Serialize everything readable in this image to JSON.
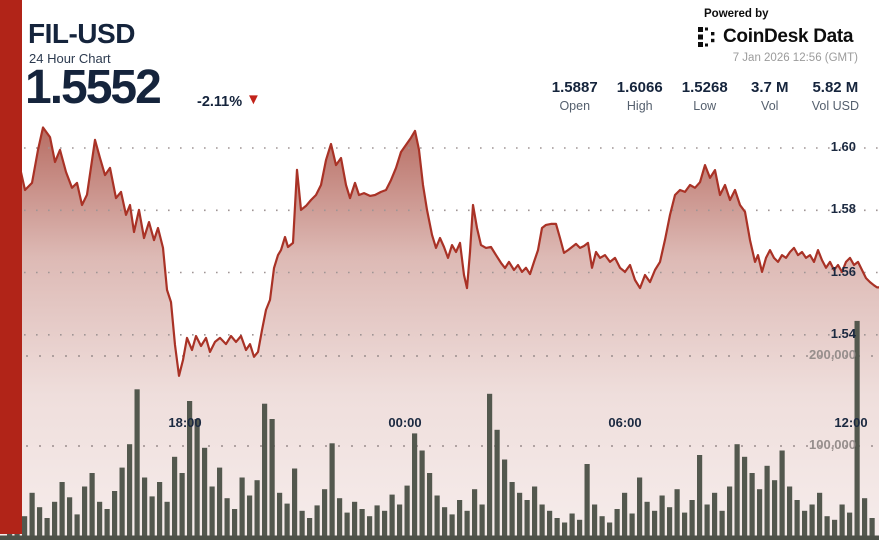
{
  "header": {
    "symbol": "FIL-USD",
    "subtitle": "24 Hour Chart",
    "price": "1.5552",
    "change": "-2.11%",
    "down_arrow": "▼",
    "powered_by": "Powered by",
    "brand": "CoinDesk Data",
    "timestamp": "7 Jan 2026 12:56 (GMT)",
    "stats": [
      {
        "value": "1.5887",
        "label": "Open"
      },
      {
        "value": "1.6066",
        "label": "High"
      },
      {
        "value": "1.5268",
        "label": "Low"
      },
      {
        "value": "3.7 M",
        "label": "Vol"
      },
      {
        "value": "5.82 M",
        "label": "Vol USD"
      }
    ]
  },
  "colors": {
    "accent_red": "#b12418",
    "line_red": "#a93226",
    "fill_red": "#9b3325",
    "navy_text": "#15243c",
    "volume_bar": "#53584e",
    "gray_label": "#968e8c",
    "triangle_red": "#c2231a"
  },
  "chart_data": {
    "type": "area",
    "title": "FIL-USD 24 Hour Chart",
    "open": 1.5887,
    "high": 1.6066,
    "low": 1.5268,
    "last": 1.5552,
    "volume": "3.7 M",
    "volume_usd": "5.82 M",
    "y_axis": {
      "side": "right",
      "ticks": [
        "1.60",
        "1.58",
        "1.56",
        "1.54"
      ],
      "tick_values": [
        1.6,
        1.58,
        1.56,
        1.54
      ],
      "ylim": [
        1.515,
        1.615
      ],
      "grid": "dotted"
    },
    "vol_axis": {
      "labels": [
        "200,000",
        "100,000"
      ],
      "values": [
        200000,
        100000
      ]
    },
    "x_axis": {
      "ticks": [
        "18:00",
        "00:00",
        "06:00",
        "12:00"
      ]
    },
    "price_line": {
      "series_name": "FIL-USD price",
      "points": [
        [
          0,
          1.595
        ],
        [
          8,
          1.5952
        ],
        [
          14,
          1.5978
        ],
        [
          20,
          1.5936
        ],
        [
          25,
          1.5865
        ],
        [
          32,
          1.5888
        ],
        [
          38,
          1.5994
        ],
        [
          43,
          1.6066
        ],
        [
          50,
          1.6035
        ],
        [
          55,
          1.5955
        ],
        [
          60,
          1.5994
        ],
        [
          66,
          1.5923
        ],
        [
          72,
          1.5872
        ],
        [
          77,
          1.5888
        ],
        [
          82,
          1.5817
        ],
        [
          87,
          1.585
        ],
        [
          95,
          1.6026
        ],
        [
          100,
          1.5968
        ],
        [
          105,
          1.5913
        ],
        [
          110,
          1.5936
        ],
        [
          116,
          1.5839
        ],
        [
          121,
          1.5859
        ],
        [
          126,
          1.5785
        ],
        [
          130,
          1.5817
        ],
        [
          134,
          1.573
        ],
        [
          139,
          1.5801
        ],
        [
          144,
          1.5711
        ],
        [
          149,
          1.5762
        ],
        [
          154,
          1.5704
        ],
        [
          158,
          1.5743
        ],
        [
          163,
          1.5679
        ],
        [
          167,
          1.5544
        ],
        [
          171,
          1.5505
        ],
        [
          175,
          1.5367
        ],
        [
          179,
          1.5268
        ],
        [
          183,
          1.5319
        ],
        [
          187,
          1.539
        ],
        [
          192,
          1.5351
        ],
        [
          196,
          1.5396
        ],
        [
          201,
          1.5364
        ],
        [
          206,
          1.539
        ],
        [
          210,
          1.5345
        ],
        [
          215,
          1.5377
        ],
        [
          220,
          1.539
        ],
        [
          226,
          1.537
        ],
        [
          231,
          1.5396
        ],
        [
          236,
          1.5377
        ],
        [
          241,
          1.5396
        ],
        [
          246,
          1.5351
        ],
        [
          250,
          1.537
        ],
        [
          254,
          1.5329
        ],
        [
          258,
          1.5345
        ],
        [
          262,
          1.5415
        ],
        [
          266,
          1.548
        ],
        [
          270,
          1.5512
        ],
        [
          274,
          1.5614
        ],
        [
          278,
          1.5656
        ],
        [
          281,
          1.5672
        ],
        [
          285,
          1.5714
        ],
        [
          288,
          1.5682
        ],
        [
          293,
          1.5695
        ],
        [
          297,
          1.593
        ],
        [
          301,
          1.5801
        ],
        [
          306,
          1.5814
        ],
        [
          311,
          1.5833
        ],
        [
          316,
          1.5849
        ],
        [
          321,
          1.5881
        ],
        [
          326,
          1.5961
        ],
        [
          331,
          1.6013
        ],
        [
          336,
          1.5945
        ],
        [
          341,
          1.5968
        ],
        [
          346,
          1.5881
        ],
        [
          350,
          1.5839
        ],
        [
          355,
          1.5888
        ],
        [
          359,
          1.5849
        ],
        [
          364,
          1.5855
        ],
        [
          370,
          1.5846
        ],
        [
          375,
          1.5849
        ],
        [
          381,
          1.5859
        ],
        [
          386,
          1.5865
        ],
        [
          391,
          1.5897
        ],
        [
          396,
          1.5936
        ],
        [
          401,
          1.5987
        ],
        [
          406,
          1.601
        ],
        [
          411,
          1.6033
        ],
        [
          415,
          1.6055
        ],
        [
          419,
          1.5994
        ],
        [
          423,
          1.5881
        ],
        [
          427,
          1.5801
        ],
        [
          432,
          1.5721
        ],
        [
          436,
          1.5679
        ],
        [
          440,
          1.5711
        ],
        [
          444,
          1.5682
        ],
        [
          448,
          1.5647
        ],
        [
          452,
          1.5688
        ],
        [
          456,
          1.5666
        ],
        [
          460,
          1.5695
        ],
        [
          464,
          1.5592
        ],
        [
          467,
          1.555
        ],
        [
          470,
          1.5666
        ],
        [
          473,
          1.5817
        ],
        [
          477,
          1.5743
        ],
        [
          481,
          1.5688
        ],
        [
          486,
          1.5679
        ],
        [
          491,
          1.5682
        ],
        [
          496,
          1.5656
        ],
        [
          501,
          1.5631
        ],
        [
          505,
          1.5614
        ],
        [
          509,
          1.5634
        ],
        [
          514,
          1.5608
        ],
        [
          518,
          1.5624
        ],
        [
          522,
          1.5602
        ],
        [
          526,
          1.5615
        ],
        [
          530,
          1.5595
        ],
        [
          534,
          1.5634
        ],
        [
          538,
          1.5672
        ],
        [
          542,
          1.5743
        ],
        [
          546,
          1.5753
        ],
        [
          551,
          1.5756
        ],
        [
          556,
          1.5756
        ],
        [
          560,
          1.5711
        ],
        [
          564,
          1.5663
        ],
        [
          568,
          1.5672
        ],
        [
          572,
          1.5682
        ],
        [
          576,
          1.5692
        ],
        [
          580,
          1.5679
        ],
        [
          584,
          1.5685
        ],
        [
          588,
          1.5695
        ],
        [
          592,
          1.5615
        ],
        [
          596,
          1.5666
        ],
        [
          600,
          1.5647
        ],
        [
          605,
          1.5656
        ],
        [
          610,
          1.5634
        ],
        [
          615,
          1.5647
        ],
        [
          620,
          1.5615
        ],
        [
          625,
          1.5602
        ],
        [
          630,
          1.5624
        ],
        [
          635,
          1.5576
        ],
        [
          640,
          1.555
        ],
        [
          645,
          1.5592
        ],
        [
          650,
          1.5569
        ],
        [
          655,
          1.5608
        ],
        [
          660,
          1.5634
        ],
        [
          665,
          1.5705
        ],
        [
          670,
          1.5785
        ],
        [
          675,
          1.5849
        ],
        [
          680,
          1.5865
        ],
        [
          685,
          1.5859
        ],
        [
          690,
          1.5881
        ],
        [
          695,
          1.5872
        ],
        [
          700,
          1.589
        ],
        [
          705,
          1.5945
        ],
        [
          710,
          1.5904
        ],
        [
          715,
          1.5929
        ],
        [
          720,
          1.5849
        ],
        [
          725,
          1.5881
        ],
        [
          730,
          1.5833
        ],
        [
          735,
          1.5865
        ],
        [
          740,
          1.5817
        ],
        [
          745,
          1.5795
        ],
        [
          750,
          1.5704
        ],
        [
          755,
          1.5634
        ],
        [
          758,
          1.5656
        ],
        [
          762,
          1.5602
        ],
        [
          766,
          1.5647
        ],
        [
          770,
          1.5672
        ],
        [
          774,
          1.5647
        ],
        [
          778,
          1.5634
        ],
        [
          782,
          1.5656
        ],
        [
          786,
          1.5647
        ],
        [
          790,
          1.5666
        ],
        [
          794,
          1.5679
        ],
        [
          798,
          1.5656
        ],
        [
          802,
          1.5666
        ],
        [
          806,
          1.5647
        ],
        [
          810,
          1.5656
        ],
        [
          814,
          1.5634
        ],
        [
          818,
          1.5672
        ],
        [
          822,
          1.564
        ],
        [
          826,
          1.5615
        ],
        [
          830,
          1.5634
        ],
        [
          834,
          1.5608
        ],
        [
          838,
          1.5624
        ],
        [
          842,
          1.5602
        ],
        [
          846,
          1.5634
        ],
        [
          850,
          1.5647
        ],
        [
          854,
          1.5624
        ],
        [
          858,
          1.5634
        ],
        [
          862,
          1.5608
        ],
        [
          866,
          1.5582
        ],
        [
          870,
          1.5569
        ],
        [
          874,
          1.5559
        ],
        [
          877,
          1.5552
        ]
      ]
    },
    "volume_bars": {
      "series_name": "Volume",
      "values": [
        28000,
        13000,
        22000,
        48000,
        32000,
        20000,
        38000,
        60000,
        43000,
        24000,
        55000,
        70000,
        38000,
        30000,
        50000,
        76000,
        102000,
        163000,
        65000,
        44000,
        60000,
        38000,
        88000,
        70000,
        150000,
        130000,
        98000,
        55000,
        76000,
        42000,
        30000,
        65000,
        45000,
        62000,
        147000,
        130000,
        48000,
        36000,
        75000,
        28000,
        20000,
        34000,
        52000,
        103000,
        42000,
        26000,
        38000,
        30000,
        22000,
        34000,
        28000,
        46000,
        35000,
        56000,
        114000,
        95000,
        70000,
        45000,
        32000,
        24000,
        40000,
        28000,
        52000,
        35000,
        158000,
        118000,
        85000,
        60000,
        48000,
        40000,
        55000,
        35000,
        28000,
        20000,
        15000,
        25000,
        18000,
        80000,
        35000,
        22000,
        15000,
        30000,
        48000,
        25000,
        65000,
        38000,
        28000,
        45000,
        32000,
        52000,
        26000,
        40000,
        90000,
        35000,
        48000,
        28000,
        55000,
        102000,
        88000,
        70000,
        52000,
        78000,
        62000,
        95000,
        55000,
        40000,
        28000,
        35000,
        48000,
        22000,
        18000,
        35000,
        26000,
        239000,
        42000,
        20000
      ]
    }
  }
}
